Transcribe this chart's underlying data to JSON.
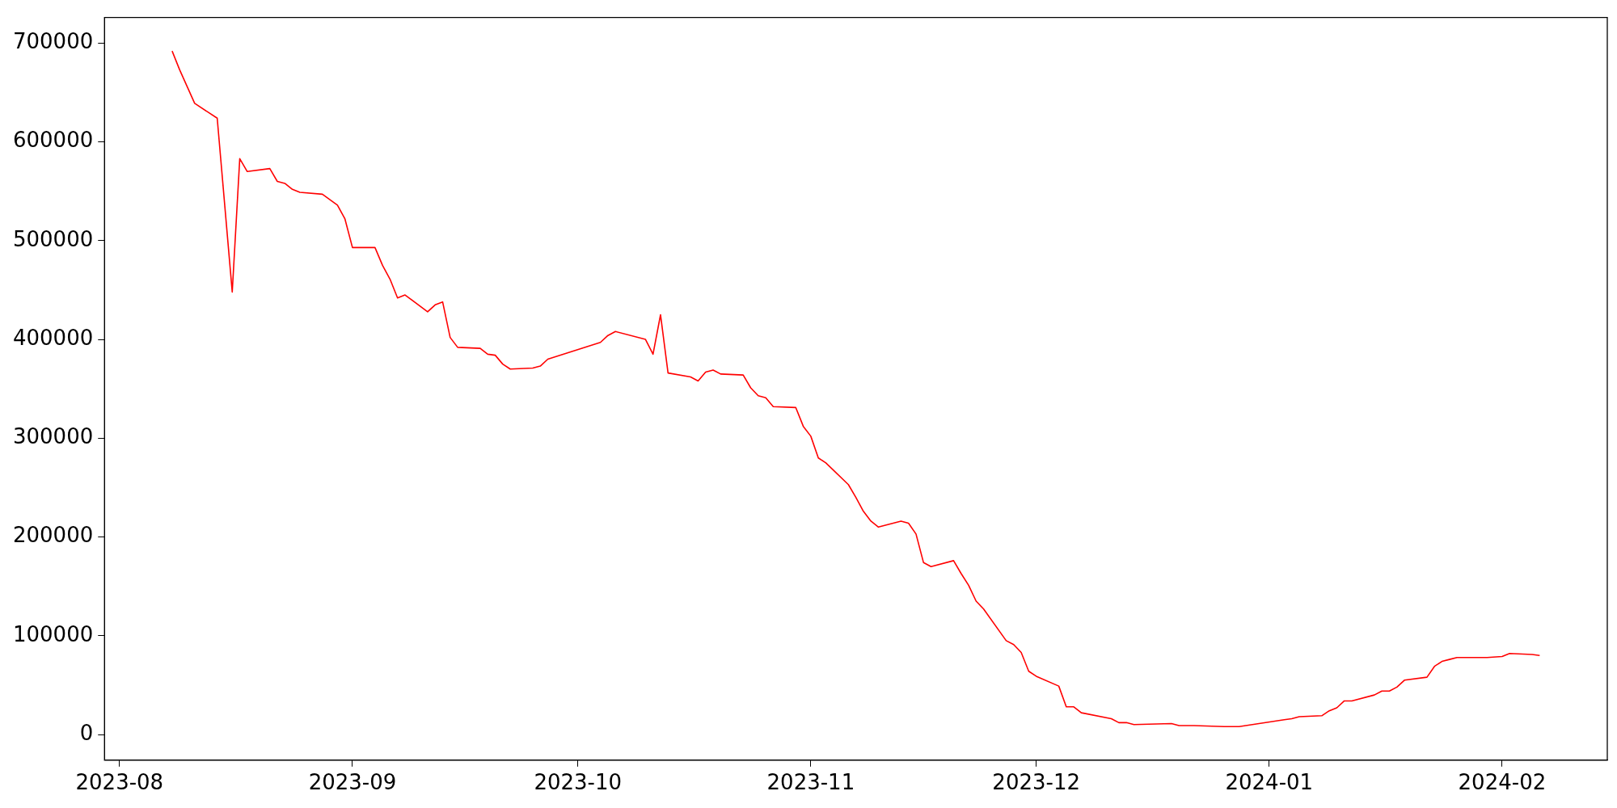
{
  "chart_data": {
    "type": "line",
    "x": [
      "2023-08-08",
      "2023-08-09",
      "2023-08-10",
      "2023-08-11",
      "2023-08-14",
      "2023-08-16",
      "2023-08-17",
      "2023-08-18",
      "2023-08-21",
      "2023-08-22",
      "2023-08-23",
      "2023-08-24",
      "2023-08-25",
      "2023-08-28",
      "2023-08-30",
      "2023-08-31",
      "2023-09-01",
      "2023-09-04",
      "2023-09-05",
      "2023-09-06",
      "2023-09-07",
      "2023-09-08",
      "2023-09-11",
      "2023-09-12",
      "2023-09-13",
      "2023-09-14",
      "2023-09-15",
      "2023-09-18",
      "2023-09-19",
      "2023-09-20",
      "2023-09-21",
      "2023-09-22",
      "2023-09-25",
      "2023-09-26",
      "2023-09-27",
      "2023-10-04",
      "2023-10-05",
      "2023-10-06",
      "2023-10-10",
      "2023-10-11",
      "2023-10-12",
      "2023-10-13",
      "2023-10-16",
      "2023-10-17",
      "2023-10-18",
      "2023-10-19",
      "2023-10-20",
      "2023-10-23",
      "2023-10-24",
      "2023-10-25",
      "2023-10-26",
      "2023-10-27",
      "2023-10-30",
      "2023-10-31",
      "2023-11-01",
      "2023-11-02",
      "2023-11-03",
      "2023-11-06",
      "2023-11-07",
      "2023-11-08",
      "2023-11-09",
      "2023-11-10",
      "2023-11-13",
      "2023-11-14",
      "2023-11-15",
      "2023-11-16",
      "2023-11-17",
      "2023-11-20",
      "2023-11-21",
      "2023-11-22",
      "2023-11-23",
      "2023-11-24",
      "2023-11-27",
      "2023-11-28",
      "2023-11-29",
      "2023-11-30",
      "2023-12-01",
      "2023-12-04",
      "2023-12-05",
      "2023-12-06",
      "2023-12-07",
      "2023-12-11",
      "2023-12-12",
      "2023-12-13",
      "2023-12-14",
      "2023-12-19",
      "2023-12-20",
      "2023-12-22",
      "2023-12-26",
      "2023-12-28",
      "2024-01-03",
      "2024-01-04",
      "2024-01-05",
      "2024-01-08",
      "2024-01-09",
      "2024-01-10",
      "2024-01-11",
      "2024-01-12",
      "2024-01-15",
      "2024-01-16",
      "2024-01-17",
      "2024-01-18",
      "2024-01-19",
      "2024-01-22",
      "2024-01-23",
      "2024-01-24",
      "2024-01-25",
      "2024-01-26",
      "2024-01-29",
      "2024-01-30",
      "2024-02-01",
      "2024-02-02",
      "2024-02-05",
      "2024-02-06"
    ],
    "series": [
      {
        "color": "#ff0000",
        "values": [
          692000,
          673000,
          656000,
          639000,
          624000,
          448000,
          583000,
          570000,
          573000,
          560000,
          558000,
          552000,
          549000,
          547000,
          536000,
          522000,
          493000,
          493000,
          475000,
          461000,
          442000,
          445000,
          428000,
          435000,
          438000,
          402000,
          392000,
          391000,
          385000,
          384000,
          375000,
          370000,
          371000,
          373000,
          380000,
          397000,
          404000,
          408000,
          400000,
          385000,
          425000,
          366000,
          362000,
          358000,
          367000,
          369000,
          365000,
          364000,
          351000,
          343000,
          341000,
          332000,
          331000,
          312000,
          302000,
          280000,
          275000,
          253000,
          240000,
          226000,
          216000,
          210000,
          216000,
          214000,
          203000,
          174000,
          170000,
          176000,
          163000,
          151000,
          135000,
          127000,
          95000,
          91000,
          83000,
          64000,
          59000,
          49000,
          28000,
          28000,
          22000,
          16000,
          12000,
          12000,
          10000,
          11000,
          9000,
          9000,
          8000,
          8000,
          15000,
          16000,
          18000,
          19000,
          24000,
          27000,
          34000,
          34000,
          40000,
          44000,
          44000,
          48000,
          55000,
          58000,
          69000,
          74000,
          76000,
          78000,
          78000,
          78000,
          79000,
          82000,
          81000,
          80000
        ]
      }
    ],
    "xlim": [
      "2023-07-30",
      "2024-02-15"
    ],
    "xticks": [
      {
        "value": "2023-08-01",
        "label": "2023-08"
      },
      {
        "value": "2023-09-01",
        "label": "2023-09"
      },
      {
        "value": "2023-10-01",
        "label": "2023-10"
      },
      {
        "value": "2023-11-01",
        "label": "2023-11"
      },
      {
        "value": "2023-12-01",
        "label": "2023-12"
      },
      {
        "value": "2024-01-01",
        "label": "2024-01"
      },
      {
        "value": "2024-02-01",
        "label": "2024-02"
      }
    ],
    "ylim": [
      -26000,
      726000
    ],
    "yticks": [
      0,
      100000,
      200000,
      300000,
      400000,
      500000,
      600000,
      700000
    ],
    "legend": false,
    "grid": false,
    "marker": "none",
    "line_style": "solid"
  }
}
